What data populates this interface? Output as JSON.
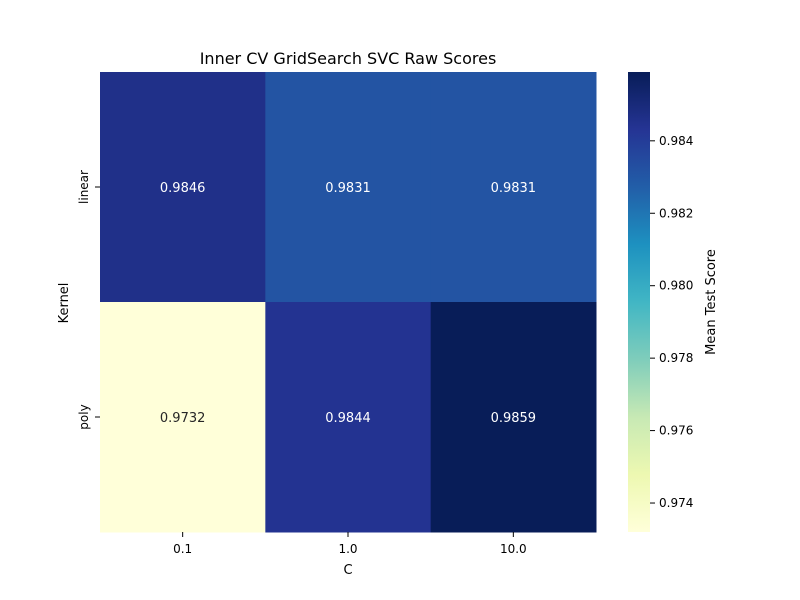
{
  "chart_data": {
    "type": "heatmap",
    "title": "Inner CV GridSearch SVC Raw Scores",
    "xlabel": "C",
    "ylabel": "Kernel",
    "x_categories": [
      "0.1",
      "1.0",
      "10.0"
    ],
    "y_categories": [
      "linear",
      "poly"
    ],
    "values": [
      [
        0.9846,
        0.9831,
        0.9831
      ],
      [
        0.9732,
        0.9844,
        0.9859
      ]
    ],
    "cell_labels": [
      [
        "0.9846",
        "0.9831",
        "0.9831"
      ],
      [
        "0.9732",
        "0.9844",
        "0.9859"
      ]
    ],
    "colorbar": {
      "label": "Mean Test Score",
      "range": [
        0.9732,
        0.9859
      ],
      "ticks": [
        "0.974",
        "0.976",
        "0.978",
        "0.980",
        "0.982",
        "0.984"
      ],
      "tick_values": [
        0.974,
        0.976,
        0.978,
        0.98,
        0.982,
        0.984
      ]
    },
    "colormap": "YlGnBu",
    "colors": {
      "low_text": "#262626",
      "high_text": "#ffffff"
    }
  }
}
